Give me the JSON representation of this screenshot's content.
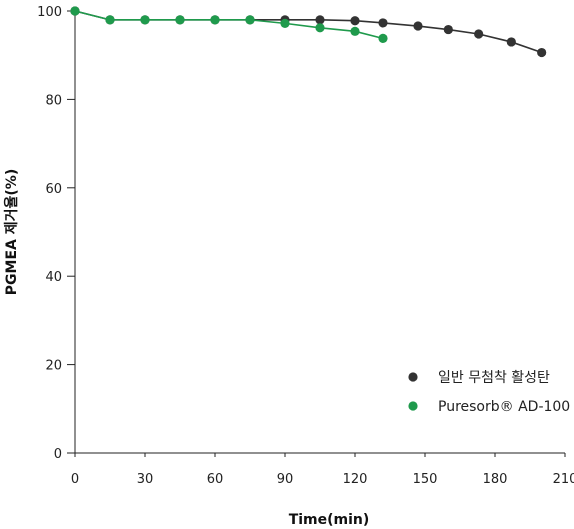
{
  "chart_data": {
    "type": "line",
    "xlabel": "Time(min)",
    "ylabel": "PGMEA 제거율(%)",
    "xlim": [
      0,
      210
    ],
    "ylim": [
      0,
      100
    ],
    "xticks": [
      0,
      30,
      60,
      90,
      120,
      150,
      180,
      210
    ],
    "yticks": [
      0,
      20,
      40,
      60,
      80,
      100
    ],
    "grid": false,
    "legend_position": "bottom-right",
    "series": [
      {
        "name": "일반 무첨착 활성탄",
        "color": "#333333",
        "points": [
          [
            0,
            100
          ],
          [
            15,
            98
          ],
          [
            30,
            98
          ],
          [
            45,
            98
          ],
          [
            60,
            98
          ],
          [
            75,
            98
          ],
          [
            90,
            98
          ],
          [
            105,
            98
          ],
          [
            120,
            97.8
          ],
          [
            132,
            97.3
          ],
          [
            147,
            96.6
          ],
          [
            160,
            95.8
          ],
          [
            173,
            94.8
          ],
          [
            187,
            93
          ],
          [
            200,
            90.6
          ]
        ]
      },
      {
        "name": "Puresorb® AD-100",
        "color": "#1f9a4c",
        "points": [
          [
            0,
            100
          ],
          [
            15,
            98
          ],
          [
            30,
            98
          ],
          [
            45,
            98
          ],
          [
            60,
            98
          ],
          [
            75,
            98
          ],
          [
            90,
            97.2
          ],
          [
            105,
            96.2
          ],
          [
            120,
            95.4
          ],
          [
            132,
            93.8
          ]
        ]
      }
    ]
  }
}
